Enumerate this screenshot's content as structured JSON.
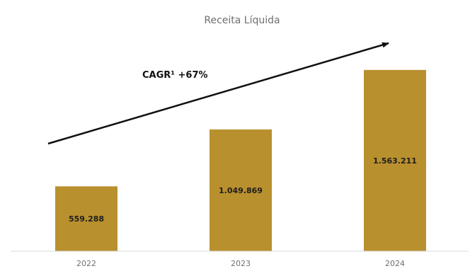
{
  "chart_data": {
    "type": "bar",
    "title": "Receita Líquida",
    "categories": [
      "2022",
      "2023",
      "2024"
    ],
    "values": [
      559288,
      1049869,
      1563211
    ],
    "value_labels": [
      "559.288",
      "1.049.869",
      "1.563.211"
    ],
    "annotation": "CAGR¹ +67%",
    "xlabel": "",
    "ylabel": "",
    "ylim": [
      0,
      1800000
    ],
    "grid": false,
    "legend": "none",
    "colors": {
      "bar": "#B8902E",
      "arrow": "#111111",
      "axis": "#d9d9d9",
      "title": "#6f6f6f",
      "tick": "#6f6f6f",
      "label": "#1e1e1e"
    }
  }
}
